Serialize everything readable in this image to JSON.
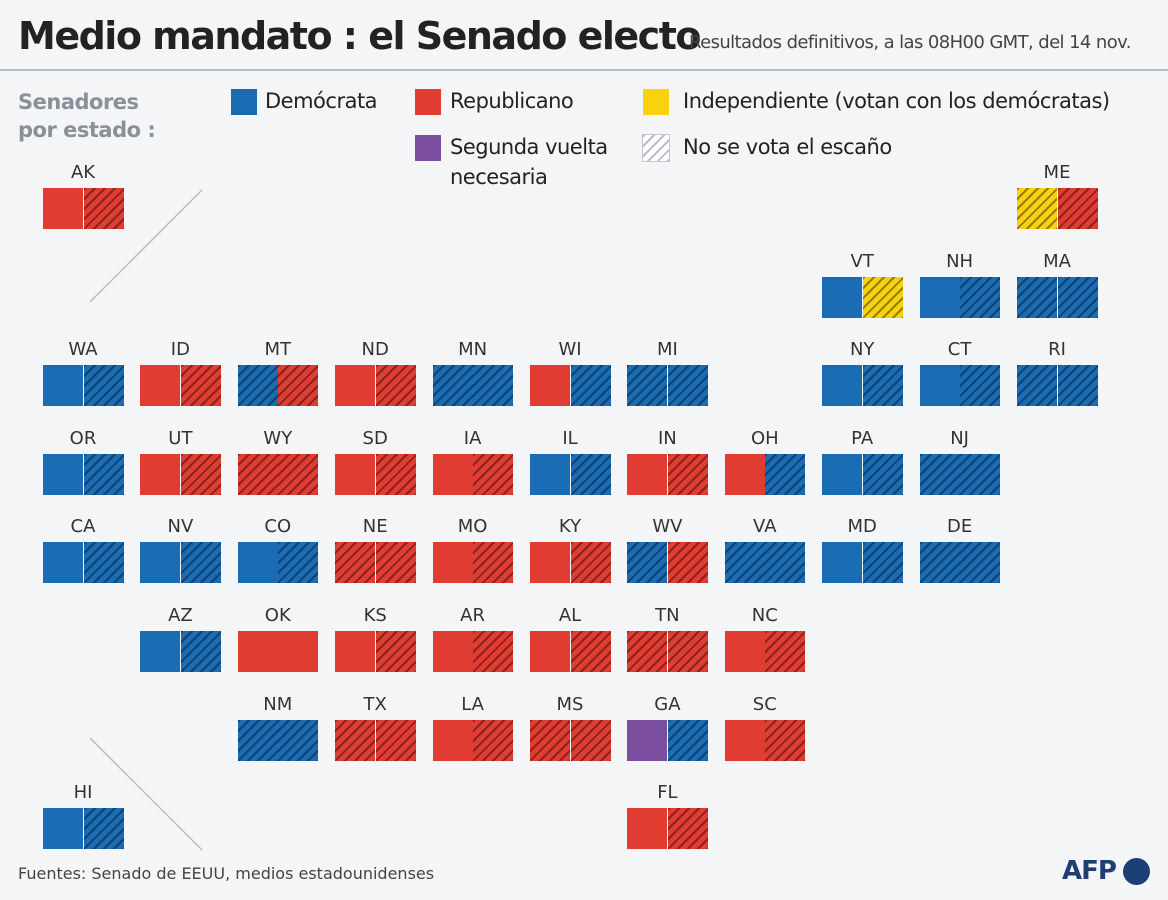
{
  "header": {
    "title": "Medio mandato : el Senado electo",
    "subtitle": "Resultados definitivos, a las 08H00 GMT, del 14 nov."
  },
  "legend": {
    "title": "Senadores por estado :",
    "items": [
      {
        "label": "Demócrata",
        "color": "#1a6db4",
        "hatched": false
      },
      {
        "label": "Republicano",
        "color": "#e03c31",
        "hatched": false
      },
      {
        "label": "Independiente (votan con los demócratas)",
        "color": "#f6d20f",
        "hatched": false
      },
      {
        "label": "Segunda vuelta necesaria",
        "color": "#7b4d9e",
        "hatched": false
      },
      {
        "label": "No se vota el escaño",
        "color": "#ffffff",
        "hatched": true
      }
    ]
  },
  "states": [
    {
      "code": "AK",
      "seats": [
        {
          "color": "#e03c31",
          "hatched": false
        },
        {
          "color": "#e03c31",
          "hatched": true
        }
      ]
    },
    {
      "code": "ME",
      "seats": [
        {
          "color": "#f6d20f",
          "hatched": true
        },
        {
          "color": "#e03c31",
          "hatched": true
        }
      ]
    },
    {
      "code": "VT",
      "seats": [
        {
          "color": "#1a6db4",
          "hatched": false
        },
        {
          "color": "#f6d20f",
          "hatched": true
        }
      ]
    },
    {
      "code": "NH",
      "seats": [
        {
          "color": "#1a6db4",
          "hatched": false
        },
        {
          "color": "#1a6db4",
          "hatched": true
        }
      ]
    },
    {
      "code": "MA",
      "seats": [
        {
          "color": "#1a6db4",
          "hatched": true
        },
        {
          "color": "#1a6db4",
          "hatched": true
        }
      ]
    },
    {
      "code": "WA",
      "seats": [
        {
          "color": "#1a6db4",
          "hatched": false
        },
        {
          "color": "#1a6db4",
          "hatched": true
        }
      ]
    },
    {
      "code": "ID",
      "seats": [
        {
          "color": "#e03c31",
          "hatched": false
        },
        {
          "color": "#e03c31",
          "hatched": true
        }
      ]
    },
    {
      "code": "MT",
      "seats": [
        {
          "color": "#1a6db4",
          "hatched": true
        },
        {
          "color": "#e03c31",
          "hatched": true
        }
      ]
    },
    {
      "code": "ND",
      "seats": [
        {
          "color": "#e03c31",
          "hatched": false
        },
        {
          "color": "#e03c31",
          "hatched": true
        }
      ]
    },
    {
      "code": "MN",
      "seats": [
        {
          "color": "#1a6db4",
          "hatched": true
        },
        {
          "color": "#1a6db4",
          "hatched": true
        }
      ]
    },
    {
      "code": "WI",
      "seats": [
        {
          "color": "#e03c31",
          "hatched": false
        },
        {
          "color": "#1a6db4",
          "hatched": true
        }
      ]
    },
    {
      "code": "MI",
      "seats": [
        {
          "color": "#1a6db4",
          "hatched": true
        },
        {
          "color": "#1a6db4",
          "hatched": true
        }
      ]
    },
    {
      "code": "NY",
      "seats": [
        {
          "color": "#1a6db4",
          "hatched": false
        },
        {
          "color": "#1a6db4",
          "hatched": true
        }
      ]
    },
    {
      "code": "CT",
      "seats": [
        {
          "color": "#1a6db4",
          "hatched": false
        },
        {
          "color": "#1a6db4",
          "hatched": true
        }
      ]
    },
    {
      "code": "RI",
      "seats": [
        {
          "color": "#1a6db4",
          "hatched": true
        },
        {
          "color": "#1a6db4",
          "hatched": true
        }
      ]
    },
    {
      "code": "OR",
      "seats": [
        {
          "color": "#1a6db4",
          "hatched": false
        },
        {
          "color": "#1a6db4",
          "hatched": true
        }
      ]
    },
    {
      "code": "UT",
      "seats": [
        {
          "color": "#e03c31",
          "hatched": false
        },
        {
          "color": "#e03c31",
          "hatched": true
        }
      ]
    },
    {
      "code": "WY",
      "seats": [
        {
          "color": "#e03c31",
          "hatched": true
        },
        {
          "color": "#e03c31",
          "hatched": true
        }
      ]
    },
    {
      "code": "SD",
      "seats": [
        {
          "color": "#e03c31",
          "hatched": false
        },
        {
          "color": "#e03c31",
          "hatched": true
        }
      ]
    },
    {
      "code": "IA",
      "seats": [
        {
          "color": "#e03c31",
          "hatched": false
        },
        {
          "color": "#e03c31",
          "hatched": true
        }
      ]
    },
    {
      "code": "IL",
      "seats": [
        {
          "color": "#1a6db4",
          "hatched": false
        },
        {
          "color": "#1a6db4",
          "hatched": true
        }
      ]
    },
    {
      "code": "IN",
      "seats": [
        {
          "color": "#e03c31",
          "hatched": false
        },
        {
          "color": "#e03c31",
          "hatched": true
        }
      ]
    },
    {
      "code": "OH",
      "seats": [
        {
          "color": "#e03c31",
          "hatched": false
        },
        {
          "color": "#1a6db4",
          "hatched": true
        }
      ]
    },
    {
      "code": "PA",
      "seats": [
        {
          "color": "#1a6db4",
          "hatched": false
        },
        {
          "color": "#1a6db4",
          "hatched": true
        }
      ]
    },
    {
      "code": "NJ",
      "seats": [
        {
          "color": "#1a6db4",
          "hatched": true
        },
        {
          "color": "#1a6db4",
          "hatched": true
        }
      ]
    },
    {
      "code": "CA",
      "seats": [
        {
          "color": "#1a6db4",
          "hatched": false
        },
        {
          "color": "#1a6db4",
          "hatched": true
        }
      ]
    },
    {
      "code": "NV",
      "seats": [
        {
          "color": "#1a6db4",
          "hatched": false
        },
        {
          "color": "#1a6db4",
          "hatched": true
        }
      ]
    },
    {
      "code": "CO",
      "seats": [
        {
          "color": "#1a6db4",
          "hatched": false
        },
        {
          "color": "#1a6db4",
          "hatched": true
        }
      ]
    },
    {
      "code": "NE",
      "seats": [
        {
          "color": "#e03c31",
          "hatched": true
        },
        {
          "color": "#e03c31",
          "hatched": true
        }
      ]
    },
    {
      "code": "MO",
      "seats": [
        {
          "color": "#e03c31",
          "hatched": false
        },
        {
          "color": "#e03c31",
          "hatched": true
        }
      ]
    },
    {
      "code": "KY",
      "seats": [
        {
          "color": "#e03c31",
          "hatched": false
        },
        {
          "color": "#e03c31",
          "hatched": true
        }
      ]
    },
    {
      "code": "WV",
      "seats": [
        {
          "color": "#1a6db4",
          "hatched": true
        },
        {
          "color": "#e03c31",
          "hatched": true
        }
      ]
    },
    {
      "code": "VA",
      "seats": [
        {
          "color": "#1a6db4",
          "hatched": true
        },
        {
          "color": "#1a6db4",
          "hatched": true
        }
      ]
    },
    {
      "code": "MD",
      "seats": [
        {
          "color": "#1a6db4",
          "hatched": false
        },
        {
          "color": "#1a6db4",
          "hatched": true
        }
      ]
    },
    {
      "code": "DE",
      "seats": [
        {
          "color": "#1a6db4",
          "hatched": true
        },
        {
          "color": "#1a6db4",
          "hatched": true
        }
      ]
    },
    {
      "code": "AZ",
      "seats": [
        {
          "color": "#1a6db4",
          "hatched": false
        },
        {
          "color": "#1a6db4",
          "hatched": true
        }
      ]
    },
    {
      "code": "OK",
      "seats": [
        {
          "color": "#e03c31",
          "hatched": false
        },
        {
          "color": "#e03c31",
          "hatched": false
        }
      ]
    },
    {
      "code": "KS",
      "seats": [
        {
          "color": "#e03c31",
          "hatched": false
        },
        {
          "color": "#e03c31",
          "hatched": true
        }
      ]
    },
    {
      "code": "AR",
      "seats": [
        {
          "color": "#e03c31",
          "hatched": false
        },
        {
          "color": "#e03c31",
          "hatched": true
        }
      ]
    },
    {
      "code": "AL",
      "seats": [
        {
          "color": "#e03c31",
          "hatched": false
        },
        {
          "color": "#e03c31",
          "hatched": true
        }
      ]
    },
    {
      "code": "TN",
      "seats": [
        {
          "color": "#e03c31",
          "hatched": true
        },
        {
          "color": "#e03c31",
          "hatched": true
        }
      ]
    },
    {
      "code": "NC",
      "seats": [
        {
          "color": "#e03c31",
          "hatched": false
        },
        {
          "color": "#e03c31",
          "hatched": true
        }
      ]
    },
    {
      "code": "NM",
      "seats": [
        {
          "color": "#1a6db4",
          "hatched": true
        },
        {
          "color": "#1a6db4",
          "hatched": true
        }
      ]
    },
    {
      "code": "TX",
      "seats": [
        {
          "color": "#e03c31",
          "hatched": true
        },
        {
          "color": "#e03c31",
          "hatched": true
        }
      ]
    },
    {
      "code": "LA",
      "seats": [
        {
          "color": "#e03c31",
          "hatched": false
        },
        {
          "color": "#e03c31",
          "hatched": true
        }
      ]
    },
    {
      "code": "MS",
      "seats": [
        {
          "color": "#e03c31",
          "hatched": true
        },
        {
          "color": "#e03c31",
          "hatched": true
        }
      ]
    },
    {
      "code": "GA",
      "seats": [
        {
          "color": "#7b4d9e",
          "hatched": false
        },
        {
          "color": "#1a6db4",
          "hatched": true
        }
      ]
    },
    {
      "code": "SC",
      "seats": [
        {
          "color": "#e03c31",
          "hatched": false
        },
        {
          "color": "#e03c31",
          "hatched": true
        }
      ]
    },
    {
      "code": "HI",
      "seats": [
        {
          "color": "#1a6db4",
          "hatched": false
        },
        {
          "color": "#1a6db4",
          "hatched": true
        }
      ]
    },
    {
      "code": "FL",
      "seats": [
        {
          "color": "#e03c31",
          "hatched": false
        },
        {
          "color": "#e03c31",
          "hatched": true
        }
      ]
    }
  ],
  "footer": {
    "source": "Fuentes: Senado de EEUU, medios estadounidenses",
    "logo": "AFP"
  }
}
